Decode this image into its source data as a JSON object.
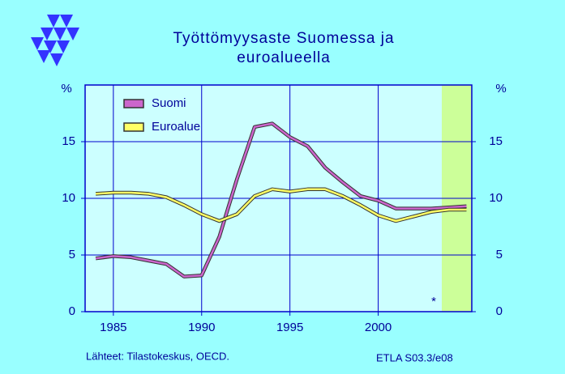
{
  "chart_data": {
    "type": "line",
    "title": [
      "Työttömyysaste  Suomessa  ja",
      "euroalueella"
    ],
    "y_unit": "%",
    "x": [
      1984,
      1985,
      1986,
      1987,
      1988,
      1989,
      1990,
      1991,
      1992,
      1993,
      1994,
      1995,
      1996,
      1997,
      1998,
      1999,
      2000,
      2001,
      2002,
      2003,
      2004,
      2005
    ],
    "series": [
      {
        "name": "Suomi",
        "color": "#cc66cc",
        "values": [
          4.7,
          4.9,
          4.8,
          4.5,
          4.2,
          3.1,
          3.2,
          6.6,
          11.7,
          16.3,
          16.6,
          15.4,
          14.6,
          12.7,
          11.4,
          10.2,
          9.8,
          9.1,
          9.1,
          9.1,
          9.2,
          9.3
        ]
      },
      {
        "name": "Euroalue",
        "color": "#ffff66",
        "values": [
          10.4,
          10.5,
          10.5,
          10.4,
          10.1,
          9.4,
          8.6,
          8.0,
          8.6,
          10.2,
          10.8,
          10.6,
          10.8,
          10.8,
          10.2,
          9.4,
          8.5,
          8.0,
          8.4,
          8.8,
          9.0,
          9.0
        ]
      }
    ],
    "xlim": [
      1983.4,
      2005.3
    ],
    "xticks": [
      1985,
      1990,
      1995,
      2000
    ],
    "ylim": [
      0,
      20
    ],
    "yticks": [
      0,
      5,
      10,
      15
    ],
    "y2lim": [
      0,
      20
    ],
    "y2ticks": [
      0,
      5,
      10,
      15
    ],
    "grid": true,
    "forecast_region": [
      2003.6,
      2005.3
    ],
    "annotation": "*",
    "source": "Lähteet:   Tilastokeskus, OECD.",
    "code": "ETLA S03.3/e08"
  }
}
